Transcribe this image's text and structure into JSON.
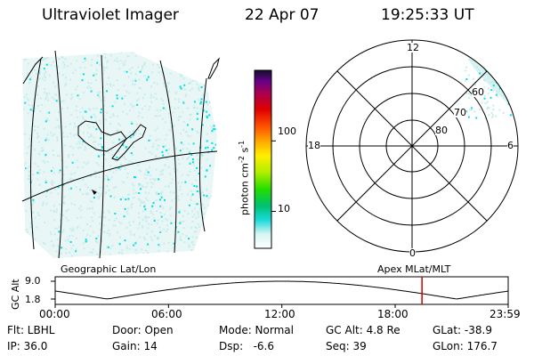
{
  "header": {
    "instrument": "Ultraviolet Imager",
    "date": "22 Apr 07",
    "time": "19:25:33 UT"
  },
  "colorbar": {
    "label_main": "photon cm",
    "label_exp1": "-2",
    "label_mid": "s",
    "label_exp2": "-1",
    "tick_labels": [
      "100",
      "10"
    ],
    "tick_values": [
      100,
      10
    ],
    "range": [
      3,
      1000
    ],
    "scale": "log"
  },
  "geo_panel": {
    "caption": "Geographic Lat/Lon"
  },
  "polar_panel": {
    "caption": "Apex MLat/MLT",
    "mlt_labels": [
      "12",
      "18",
      "6",
      "0"
    ],
    "mlat_labels": [
      "60",
      "70",
      "80"
    ]
  },
  "gc_alt_plot": {
    "ylabel": "GC Alt",
    "ytick_labels": [
      "9.0",
      "1.8"
    ],
    "xtick_labels": [
      "00:00",
      "06:00",
      "12:00",
      "18:00",
      "23:59"
    ],
    "ylim": [
      1.8,
      9.0
    ],
    "current_time_hours": 19.42,
    "marker_color": "#cc0000"
  },
  "footer": {
    "row1": [
      "Flt: LBHL",
      "Door: Open",
      "Mode: Normal",
      "GC Alt: 4.8 Re",
      "GLat: -38.9"
    ],
    "row2": [
      "IP: 36.0",
      "Gain: 14",
      "Dsp:   -6.6",
      "Seq: 39",
      "GLon: 176.7"
    ]
  },
  "colors": {
    "emission_cyan": "#00e0e0",
    "emission_faint": "#c8ecec"
  }
}
